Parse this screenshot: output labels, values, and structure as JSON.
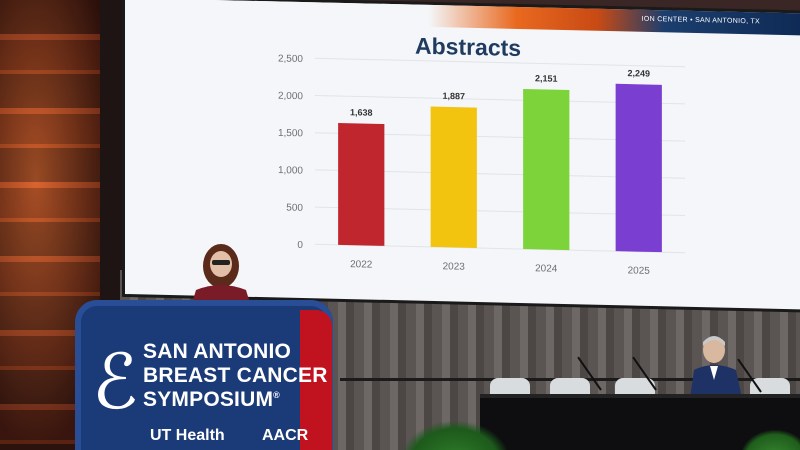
{
  "banner": {
    "text": "ION CENTER • SAN ANTONIO, TX"
  },
  "chart_data": {
    "type": "bar",
    "title": "Abstracts",
    "categories": [
      "2022",
      "2023",
      "2024",
      "2025"
    ],
    "values": [
      1638,
      1887,
      2151,
      2249
    ],
    "data_labels": [
      "1,638",
      "1,887",
      "2,151",
      "2,249"
    ],
    "yticks": [
      0,
      500,
      1000,
      1500,
      2000,
      2500
    ],
    "ytick_labels": [
      "0",
      "500",
      "1,000",
      "1,500",
      "2,000",
      "2,500"
    ],
    "ylim": [
      0,
      2500
    ],
    "grid": true,
    "colors": [
      "#c0262d",
      "#f2c40f",
      "#7cd33a",
      "#7a3fd0"
    ]
  },
  "podium": {
    "line1": "SAN ANTONIO",
    "line2": "BREAST CANCER",
    "line3": "SYMPOSIUM",
    "registered": "®",
    "sponsor1": "UT Health",
    "sponsor2": "AACR",
    "colors": {
      "blue": "#1a3a78",
      "red": "#c1121f"
    }
  }
}
